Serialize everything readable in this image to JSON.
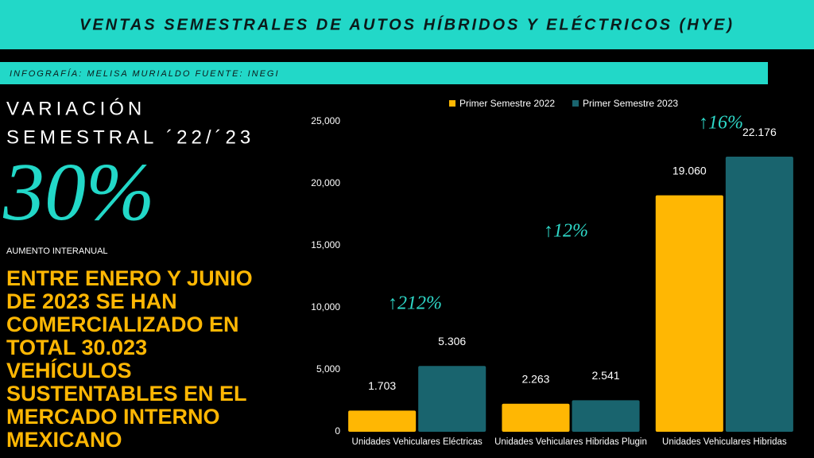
{
  "header": {
    "title": "VENTAS SEMESTRALES DE AUTOS HÍBRIDOS Y ELÉCTRICOS (HYE)",
    "credit": "INFOGRAFÍA: MELISA MURIALDO FUENTE: INEGI"
  },
  "summary": {
    "heading_lines": [
      "VARIACIÓN",
      "SEMESTRAL ´22/´23"
    ],
    "big_number": "30%",
    "big_number_caption": "AUMENTO INTERANUAL",
    "statement_lines": [
      "ENTRE ENERO Y JUNIO",
      "DE 2023 SE HAN",
      "COMERCIALIZADO EN",
      "TOTAL 30.023",
      "VEHÍCULOS",
      "SUSTENTABLES  EN EL",
      "MERCADO INTERNO",
      "MEXICANO"
    ]
  },
  "chart_data": {
    "type": "bar",
    "categories": [
      "Unidades Vehiculares Eléctricas",
      "Unidades Vehiculares Hibridas Plugin",
      "Unidades Vehiculares Hibridas"
    ],
    "series": [
      {
        "name": "Primer Semestre 2022",
        "color": "#ffb703",
        "values": [
          1703,
          2263,
          19060
        ],
        "value_labels": [
          "1.703",
          "2.263",
          "19.060"
        ]
      },
      {
        "name": "Primer Semestre 2023",
        "color": "#19646e",
        "values": [
          5306,
          2541,
          22176
        ],
        "value_labels": [
          "5.306",
          "2.541",
          "22.176"
        ]
      }
    ],
    "annotations": [
      "↑212%",
      "↑12%",
      "↑16%"
    ],
    "ylim": [
      0,
      25000
    ],
    "yticks": [
      0,
      {
        "value": 5000,
        "label": "5,000"
      },
      {
        "value": 10000,
        "label": "10,000"
      },
      {
        "value": 15000,
        "label": "15,000"
      },
      {
        "value": 20000,
        "label": "20,000"
      },
      {
        "value": 25000,
        "label": "25,000"
      }
    ],
    "legend": "top"
  }
}
